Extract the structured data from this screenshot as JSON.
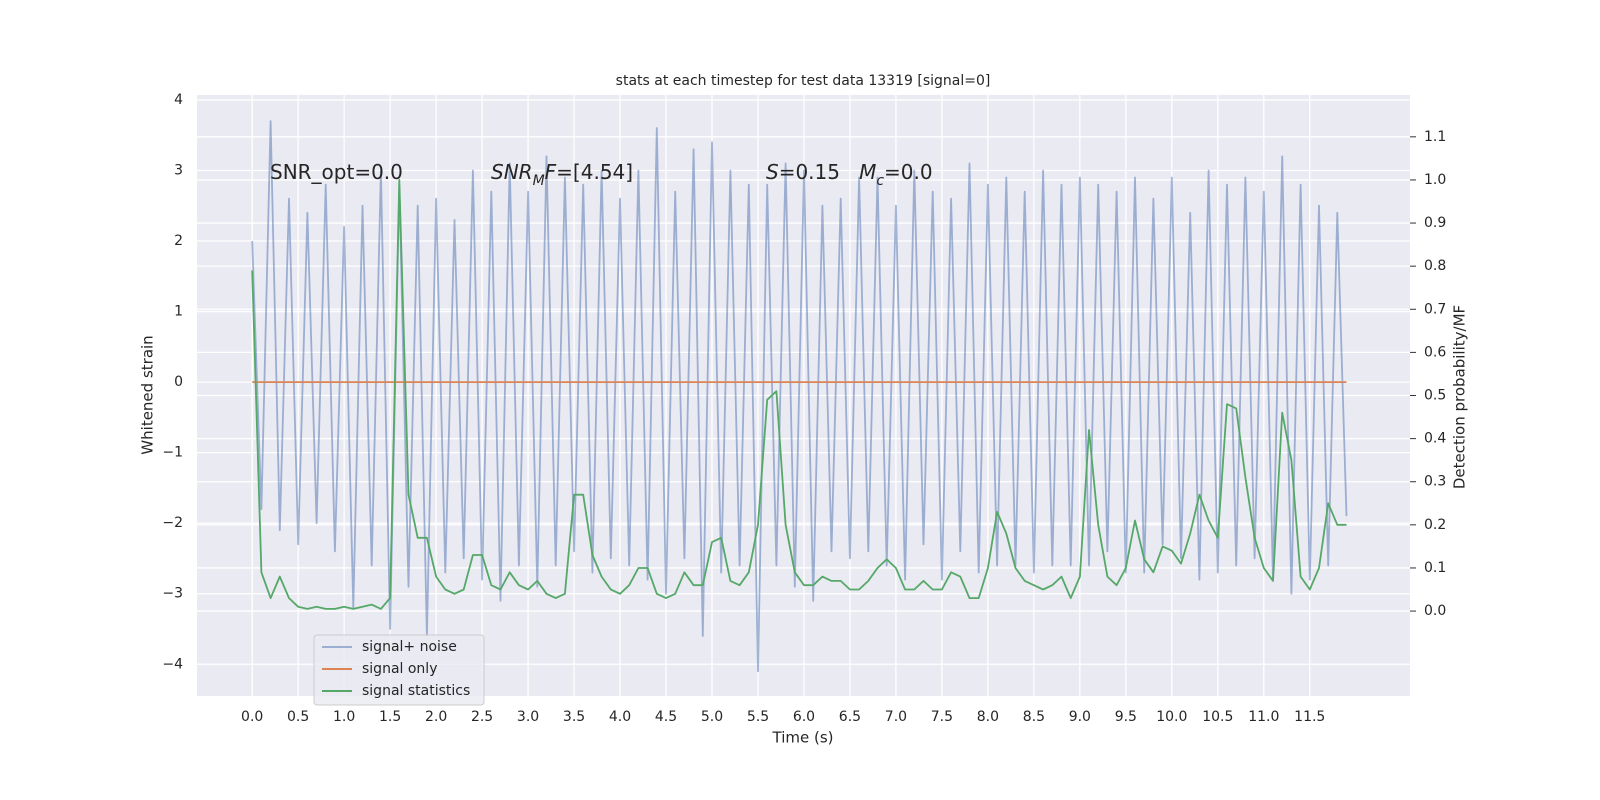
{
  "chart_data": {
    "type": "line",
    "title": "stats at each timestep for test data 13319 [signal=0]",
    "xlabel": "Time (s)",
    "ylabel": "Whitened strain",
    "y2label": "Detection probability/MF",
    "annotations": [
      [
        {
          "text": "SNR_opt=0.0",
          "style": "normal"
        }
      ],
      [
        {
          "text": "SNR",
          "style": "italic"
        },
        {
          "text": "M",
          "style": "sub"
        },
        {
          "text": "F",
          "style": "italic"
        },
        {
          "text": "=[4.54]",
          "style": "normal"
        }
      ],
      [
        {
          "text": "S",
          "style": "italic"
        },
        {
          "text": "=0.15   ",
          "style": "normal"
        },
        {
          "text": "M",
          "style": "italic"
        },
        {
          "text": "c",
          "style": "sub"
        },
        {
          "text": "=0.0",
          "style": "normal"
        }
      ]
    ],
    "xlim": [
      -0.6,
      12.59
    ],
    "ylim": [
      -4.45,
      4.07
    ],
    "y2lim": [
      -0.197,
      1.197
    ],
    "xticks": [
      {
        "value": 0,
        "label": "0.0"
      },
      0.5,
      {
        "value": 1,
        "label": "1.0"
      },
      1.5,
      {
        "value": 2,
        "label": "2.0"
      },
      2.5,
      {
        "value": 3,
        "label": "3.0"
      },
      3.5,
      {
        "value": 4,
        "label": "4.0"
      },
      4.5,
      {
        "value": 5,
        "label": "5.0"
      },
      5.5,
      {
        "value": 6,
        "label": "6.0"
      },
      6.5,
      {
        "value": 7,
        "label": "7.0"
      },
      7.5,
      {
        "value": 8,
        "label": "8.0"
      },
      8.5,
      {
        "value": 9,
        "label": "9.0"
      },
      9.5,
      {
        "value": 10,
        "label": "10.0"
      },
      10.5,
      {
        "value": 11,
        "label": "11.0"
      },
      11.5
    ],
    "yticks": [
      {
        "value": -4,
        "label": "−4"
      },
      {
        "value": -3,
        "label": "−3"
      },
      {
        "value": -2,
        "label": "−2"
      },
      {
        "value": -1,
        "label": "−1"
      },
      0,
      1,
      2,
      3,
      4
    ],
    "y2ticks": [
      {
        "value": 0,
        "label": "0.0"
      },
      0.1,
      0.2,
      0.3,
      0.4,
      0.5,
      0.6,
      0.7,
      0.8,
      0.9,
      {
        "value": 1,
        "label": "1.0"
      },
      1.1
    ],
    "grid": true,
    "legend": "lower left",
    "x": [
      0,
      0.1,
      0.2,
      0.3,
      0.4,
      0.5,
      0.6,
      0.7,
      0.8,
      0.9,
      1,
      1.1,
      1.2,
      1.3,
      1.4,
      1.5,
      1.6,
      1.7,
      1.8,
      1.9,
      2,
      2.1,
      2.2,
      2.3,
      2.4,
      2.5,
      2.6,
      2.7,
      2.8,
      2.9,
      3,
      3.1,
      3.2,
      3.3,
      3.4,
      3.5,
      3.6,
      3.7,
      3.8,
      3.9,
      4,
      4.1,
      4.2,
      4.3,
      4.4,
      4.5,
      4.6,
      4.7,
      4.8,
      4.9,
      5,
      5.1,
      5.2,
      5.3,
      5.4,
      5.5,
      5.6,
      5.7,
      5.8,
      5.9,
      6,
      6.1,
      6.2,
      6.3,
      6.4,
      6.5,
      6.6,
      6.7,
      6.8,
      6.9,
      7,
      7.1,
      7.2,
      7.3,
      7.4,
      7.5,
      7.6,
      7.7,
      7.8,
      7.9,
      8,
      8.1,
      8.2,
      8.3,
      8.4,
      8.5,
      8.6,
      8.7,
      8.8,
      8.9,
      9,
      9.1,
      9.2,
      9.3,
      9.4,
      9.5,
      9.6,
      9.7,
      9.8,
      9.9,
      10,
      10.1,
      10.2,
      10.3,
      10.4,
      10.5,
      10.6,
      10.7,
      10.8,
      10.9,
      11,
      11.1,
      11.2,
      11.3,
      11.4,
      11.5,
      11.6,
      11.7,
      11.8,
      11.9
    ],
    "series": [
      {
        "name": "signal+ noise",
        "color": "#4c72b0",
        "opacity": 0.5,
        "axis": "y",
        "values": [
          2.0,
          -1.8,
          3.7,
          -2.1,
          2.6,
          -2.3,
          2.4,
          -2.0,
          2.8,
          -2.4,
          2.2,
          -3.2,
          2.5,
          -2.6,
          3.0,
          -3.5,
          2.8,
          -2.9,
          2.5,
          -3.6,
          2.6,
          -2.7,
          2.3,
          -2.5,
          3.0,
          -2.8,
          2.7,
          -3.1,
          3.1,
          -2.6,
          2.7,
          -2.9,
          3.2,
          -2.6,
          2.9,
          -2.4,
          2.8,
          -2.7,
          3.0,
          -2.5,
          2.6,
          -2.6,
          3.0,
          -2.8,
          3.6,
          -3.0,
          2.7,
          -2.5,
          3.3,
          -3.6,
          3.4,
          -2.7,
          3.0,
          -2.6,
          2.8,
          -4.1,
          2.8,
          -2.6,
          3.1,
          -2.9,
          3.0,
          -3.1,
          2.5,
          -2.4,
          2.6,
          -2.5,
          2.9,
          -2.4,
          2.9,
          -2.6,
          2.5,
          -2.8,
          3.0,
          -2.3,
          2.7,
          -2.8,
          2.6,
          -2.4,
          3.1,
          -2.7,
          2.8,
          -2.6,
          2.9,
          -2.6,
          2.7,
          -2.7,
          3.0,
          -2.6,
          2.8,
          -2.6,
          2.9,
          -2.6,
          2.8,
          -2.4,
          2.7,
          -2.7,
          2.9,
          -2.7,
          2.6,
          -2.3,
          2.9,
          -2.5,
          2.4,
          -2.8,
          3.0,
          -2.7,
          2.8,
          -2.6,
          2.9,
          -2.5,
          2.7,
          -2.8,
          3.2,
          -3.0,
          2.8,
          -2.8,
          2.5,
          -2.6,
          2.4,
          -1.9
        ]
      },
      {
        "name": "signal only",
        "color": "#dd8452",
        "opacity": 1,
        "axis": "y",
        "values": [
          0,
          0,
          0,
          0,
          0,
          0,
          0,
          0,
          0,
          0,
          0,
          0,
          0,
          0,
          0,
          0,
          0,
          0,
          0,
          0,
          0,
          0,
          0,
          0,
          0,
          0,
          0,
          0,
          0,
          0,
          0,
          0,
          0,
          0,
          0,
          0,
          0,
          0,
          0,
          0,
          0,
          0,
          0,
          0,
          0,
          0,
          0,
          0,
          0,
          0,
          0,
          0,
          0,
          0,
          0,
          0,
          0,
          0,
          0,
          0,
          0,
          0,
          0,
          0,
          0,
          0,
          0,
          0,
          0,
          0,
          0,
          0,
          0,
          0,
          0,
          0,
          0,
          0,
          0,
          0,
          0,
          0,
          0,
          0,
          0,
          0,
          0,
          0,
          0,
          0,
          0,
          0,
          0,
          0,
          0,
          0,
          0,
          0,
          0,
          0,
          0,
          0,
          0,
          0,
          0,
          0,
          0,
          0,
          0,
          0,
          0,
          0,
          0,
          0,
          0,
          0,
          0,
          0,
          0,
          0
        ]
      },
      {
        "name": "signal statistics",
        "color": "#55a868",
        "opacity": 1,
        "axis": "y2",
        "values": [
          0.79,
          0.09,
          0.03,
          0.08,
          0.03,
          0.01,
          0.005,
          0.01,
          0.005,
          0.005,
          0.01,
          0.005,
          0.01,
          0.015,
          0.005,
          0.03,
          1.0,
          0.27,
          0.17,
          0.17,
          0.08,
          0.05,
          0.04,
          0.05,
          0.13,
          0.13,
          0.06,
          0.05,
          0.09,
          0.06,
          0.05,
          0.07,
          0.04,
          0.03,
          0.04,
          0.27,
          0.27,
          0.13,
          0.08,
          0.05,
          0.04,
          0.06,
          0.1,
          0.1,
          0.04,
          0.03,
          0.04,
          0.09,
          0.06,
          0.06,
          0.16,
          0.17,
          0.07,
          0.06,
          0.09,
          0.2,
          0.49,
          0.51,
          0.2,
          0.09,
          0.06,
          0.06,
          0.08,
          0.07,
          0.07,
          0.05,
          0.05,
          0.07,
          0.1,
          0.12,
          0.1,
          0.05,
          0.05,
          0.07,
          0.05,
          0.05,
          0.09,
          0.08,
          0.03,
          0.03,
          0.1,
          0.23,
          0.18,
          0.1,
          0.07,
          0.06,
          0.05,
          0.06,
          0.08,
          0.03,
          0.08,
          0.42,
          0.2,
          0.08,
          0.06,
          0.1,
          0.21,
          0.12,
          0.09,
          0.15,
          0.14,
          0.11,
          0.18,
          0.27,
          0.21,
          0.17,
          0.48,
          0.47,
          0.31,
          0.17,
          0.1,
          0.07,
          0.46,
          0.35,
          0.08,
          0.05,
          0.1,
          0.25,
          0.2,
          0.2
        ]
      }
    ]
  }
}
